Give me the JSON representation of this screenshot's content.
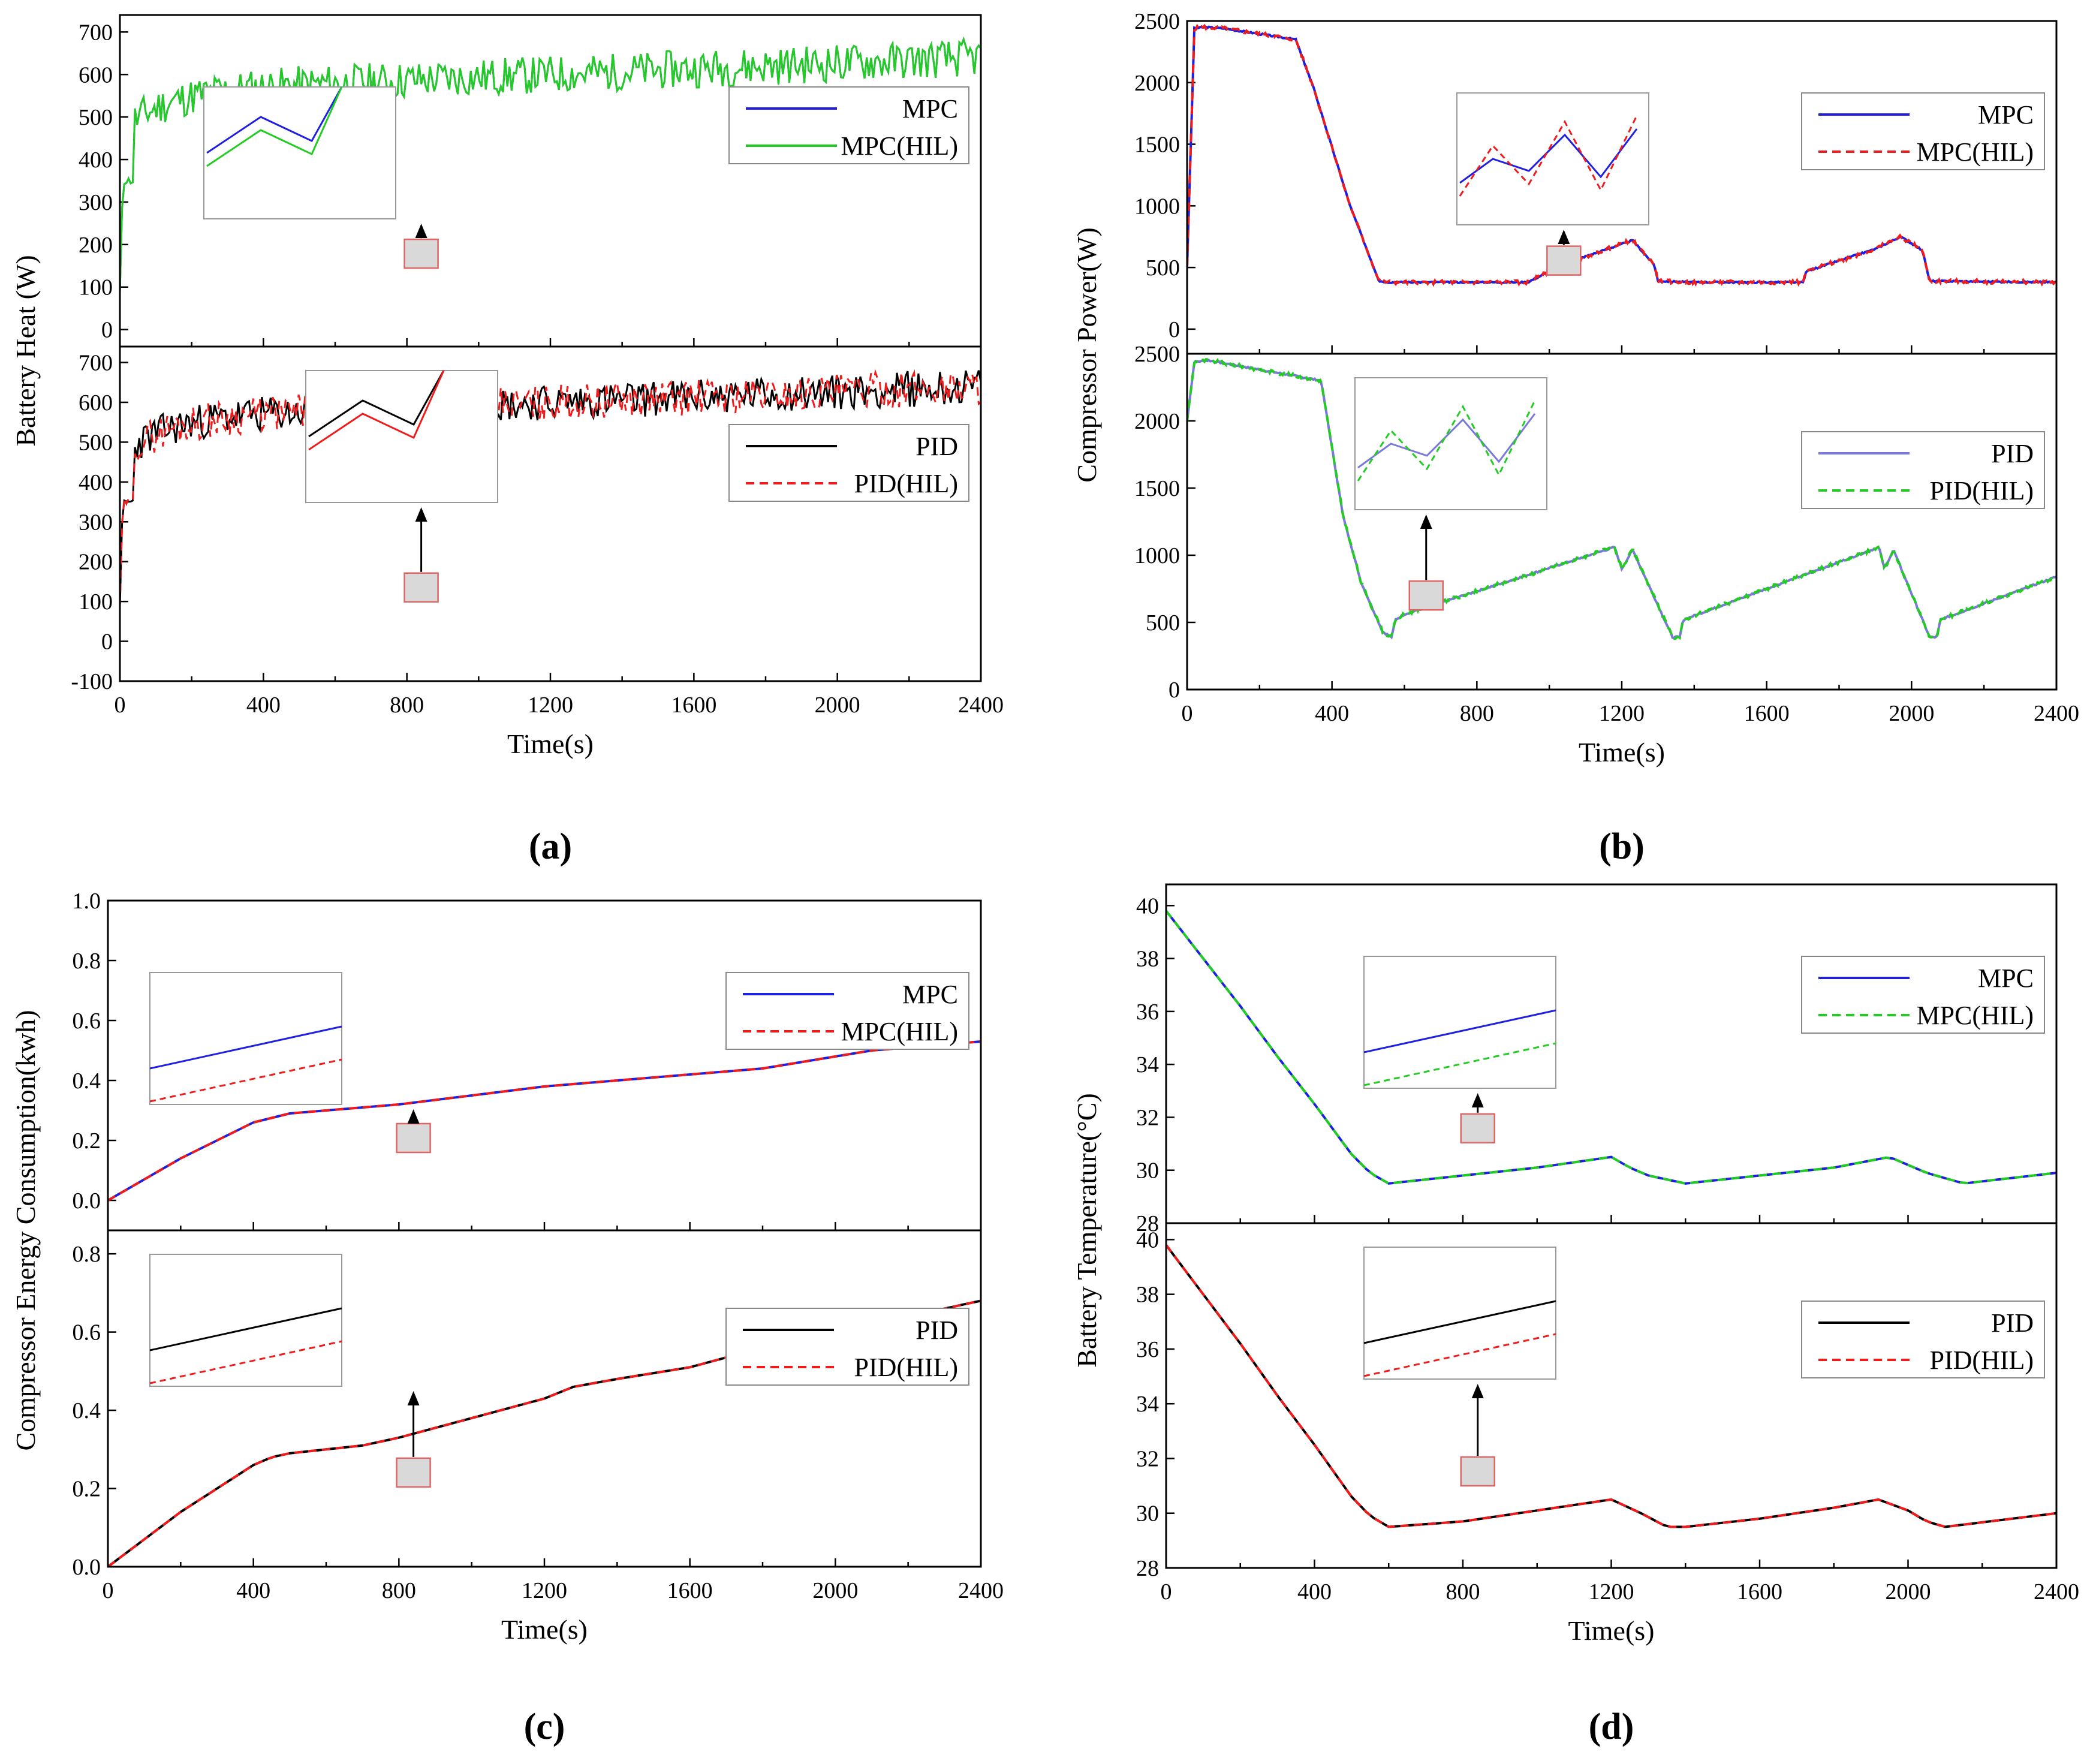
{
  "figure": {
    "panel_labels": [
      "(a)",
      "(b)",
      "(c)",
      "(d)"
    ]
  },
  "colors": {
    "mpc_blue": "#1f1fe0",
    "hil_green": "#22cc22",
    "pid_black": "#000000",
    "hil_red": "#ee1c1c",
    "pid_purple": "#7a78d8",
    "zoom_box_fill": "#d9d9d9",
    "zoom_box_stroke": "#e06666"
  },
  "chart_data": [
    {
      "id": "a",
      "type": "line",
      "title": "",
      "xlabel": "Time(s)",
      "ylabel": "Battery Heat (W)",
      "xlim": [
        0,
        2400
      ],
      "x_ticks": [
        "0",
        "400",
        "800",
        "1200",
        "1600",
        "2000",
        "2400"
      ],
      "subplots": [
        {
          "ylim": [
            -40,
            740
          ],
          "y_ticks": [
            "0",
            "100",
            "200",
            "300",
            "400",
            "500",
            "600",
            "700"
          ],
          "legend": [
            "MPC",
            "MPC(HIL)"
          ],
          "series": [
            {
              "name": "MPC",
              "color": "#1f1fe0",
              "dash": false,
              "trace": "heat",
              "seed": 11
            },
            {
              "name": "MPC(HIL)",
              "color": "#22cc22",
              "dash": false,
              "trace": "heat",
              "seed": 11
            }
          ]
        },
        {
          "ylim": [
            -100,
            740
          ],
          "y_ticks": [
            "-100",
            "0",
            "100",
            "200",
            "300",
            "400",
            "500",
            "600",
            "700"
          ],
          "legend": [
            "PID",
            "PID(HIL)"
          ],
          "series": [
            {
              "name": "PID",
              "color": "#000000",
              "dash": false,
              "trace": "heat",
              "seed": 23
            },
            {
              "name": "PID(HIL)",
              "color": "#ee1c1c",
              "dash": true,
              "trace": "heat",
              "seed": 29
            }
          ]
        }
      ]
    },
    {
      "id": "b",
      "type": "line",
      "title": "",
      "xlabel": "Time(s)",
      "ylabel": "Compressor Power(W)",
      "xlim": [
        0,
        2400
      ],
      "x_ticks": [
        "0",
        "400",
        "800",
        "1200",
        "1600",
        "2000",
        "2400"
      ],
      "subplots": [
        {
          "ylim": [
            -200,
            2500
          ],
          "y_ticks": [
            "0",
            "500",
            "1000",
            "1500",
            "2000",
            "2500"
          ],
          "legend": [
            "MPC",
            "MPC(HIL)"
          ],
          "x": [
            0,
            20,
            50,
            100,
            300,
            350,
            450,
            530,
            560,
            940,
            1050,
            1150,
            1230,
            1290,
            1300,
            1400,
            1700,
            1710,
            1900,
            1970,
            2030,
            2050,
            2400
          ],
          "y": [
            500,
            2440,
            2450,
            2440,
            2350,
            1950,
            1000,
            390,
            380,
            380,
            540,
            640,
            720,
            520,
            390,
            380,
            380,
            470,
            650,
            750,
            640,
            390,
            380
          ],
          "series": [
            {
              "name": "MPC",
              "color": "#1f1fe0",
              "dash": false,
              "noise": 6,
              "seed": 3
            },
            {
              "name": "MPC(HIL)",
              "color": "#ee1c1c",
              "dash": true,
              "noise": 16,
              "seed": 5
            }
          ]
        },
        {
          "ylim": [
            0,
            2500
          ],
          "y_ticks": [
            "0",
            "500",
            "1000",
            "1500",
            "2000",
            "2500"
          ],
          "legend": [
            "PID",
            "PID(HIL)"
          ],
          "x": [
            0,
            20,
            60,
            370,
            430,
            480,
            540,
            565,
            575,
            600,
            1180,
            1200,
            1230,
            1340,
            1360,
            1370,
            1910,
            1925,
            1950,
            2050,
            2070,
            2080,
            2400
          ],
          "y": [
            2000,
            2440,
            2450,
            2300,
            1300,
            800,
            430,
            390,
            520,
            560,
            1060,
            900,
            1040,
            390,
            390,
            520,
            1060,
            900,
            1040,
            390,
            390,
            520,
            840
          ],
          "series": [
            {
              "name": "PID",
              "color": "#7a78d8",
              "dash": false,
              "noise": 6,
              "seed": 7
            },
            {
              "name": "PID(HIL)",
              "color": "#22cc22",
              "dash": true,
              "noise": 14,
              "seed": 9
            }
          ]
        }
      ]
    },
    {
      "id": "c",
      "type": "line",
      "title": "",
      "xlabel": "Time(s)",
      "ylabel": "Compressor Energy Consumption(kwh)",
      "xlim": [
        0,
        2400
      ],
      "x_ticks": [
        "0",
        "400",
        "800",
        "1200",
        "1600",
        "2000",
        "2400"
      ],
      "subplots": [
        {
          "ylim": [
            -0.1,
            1.0
          ],
          "y_ticks": [
            "0.0",
            "0.2",
            "0.4",
            "0.6",
            "0.8",
            "1.0"
          ],
          "legend": [
            "MPC",
            "MPC(HIL)"
          ],
          "x": [
            0,
            100,
            200,
            300,
            400,
            500,
            600,
            700,
            800,
            1000,
            1200,
            1300,
            1500,
            1700,
            1800,
            2000,
            2100,
            2200,
            2400
          ],
          "y": [
            0.0,
            0.07,
            0.14,
            0.2,
            0.26,
            0.29,
            0.3,
            0.31,
            0.32,
            0.35,
            0.38,
            0.39,
            0.41,
            0.43,
            0.44,
            0.48,
            0.5,
            0.51,
            0.53
          ],
          "series": [
            {
              "name": "MPC",
              "color": "#1f1fe0",
              "dash": false
            },
            {
              "name": "MPC(HIL)",
              "color": "#ee1c1c",
              "dash": true
            }
          ]
        },
        {
          "ylim": [
            0.0,
            0.86
          ],
          "y_ticks": [
            "0.0",
            "0.2",
            "0.4",
            "0.6",
            "0.8"
          ],
          "legend": [
            "PID",
            "PID(HIL)"
          ],
          "x": [
            0,
            100,
            200,
            300,
            400,
            450,
            500,
            600,
            700,
            800,
            1000,
            1200,
            1280,
            1400,
            1600,
            1800,
            2000,
            2100,
            2200,
            2400
          ],
          "y": [
            0.0,
            0.07,
            0.14,
            0.2,
            0.26,
            0.28,
            0.29,
            0.3,
            0.31,
            0.33,
            0.38,
            0.43,
            0.46,
            0.48,
            0.51,
            0.56,
            0.61,
            0.63,
            0.64,
            0.68
          ],
          "series": [
            {
              "name": "PID",
              "color": "#000000",
              "dash": false
            },
            {
              "name": "PID(HIL)",
              "color": "#ee1c1c",
              "dash": true
            }
          ]
        }
      ]
    },
    {
      "id": "d",
      "type": "line",
      "title": "",
      "xlabel": "Time(s)",
      "ylabel": "Battery Temperature(°C)",
      "xlim": [
        0,
        2400
      ],
      "x_ticks": [
        "0",
        "400",
        "800",
        "1200",
        "1600",
        "2000",
        "2400"
      ],
      "subplots": [
        {
          "ylim": [
            28,
            40.8
          ],
          "y_ticks": [
            "28",
            "30",
            "32",
            "34",
            "36",
            "38",
            "40"
          ],
          "legend": [
            "MPC",
            "MPC(HIL)"
          ],
          "x": [
            0,
            100,
            200,
            300,
            400,
            500,
            550,
            600,
            800,
            1000,
            1200,
            1250,
            1300,
            1400,
            1600,
            1800,
            1950,
            2000,
            2050,
            2150,
            2400
          ],
          "y": [
            39.8,
            38.0,
            36.2,
            34.3,
            32.5,
            30.6,
            29.9,
            29.5,
            29.8,
            30.1,
            30.5,
            30.1,
            29.8,
            29.5,
            29.8,
            30.1,
            30.5,
            30.2,
            29.9,
            29.5,
            29.9
          ],
          "series": [
            {
              "name": "MPC",
              "color": "#1f1fe0",
              "dash": false
            },
            {
              "name": "MPC(HIL)",
              "color": "#22cc22",
              "dash": true
            }
          ]
        },
        {
          "ylim": [
            28,
            40.6
          ],
          "y_ticks": [
            "28",
            "30",
            "32",
            "34",
            "36",
            "38",
            "40"
          ],
          "legend": [
            "PID",
            "PID(HIL)"
          ],
          "x": [
            0,
            100,
            200,
            300,
            400,
            500,
            550,
            600,
            800,
            1000,
            1200,
            1280,
            1350,
            1400,
            1600,
            1800,
            1920,
            2000,
            2050,
            2100,
            2400
          ],
          "y": [
            39.8,
            38.0,
            36.2,
            34.3,
            32.5,
            30.6,
            29.9,
            29.5,
            29.7,
            30.1,
            30.5,
            30.0,
            29.5,
            29.5,
            29.8,
            30.2,
            30.5,
            30.1,
            29.7,
            29.5,
            30.0
          ],
          "series": [
            {
              "name": "PID",
              "color": "#000000",
              "dash": false
            },
            {
              "name": "PID(HIL)",
              "color": "#ee1c1c",
              "dash": true
            }
          ]
        }
      ]
    }
  ]
}
